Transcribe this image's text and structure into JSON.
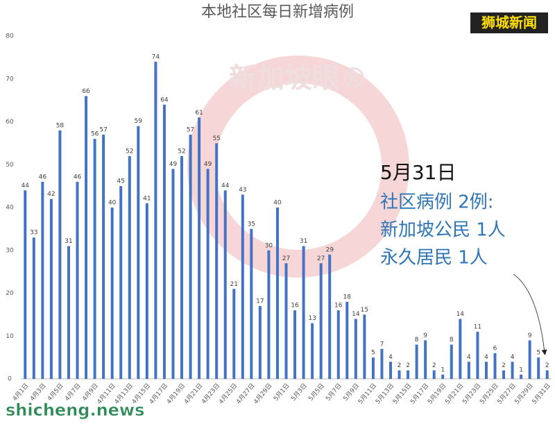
{
  "chart_data": {
    "type": "bar",
    "title": "本地社区每日新增病例",
    "categories": [
      "4月1日",
      null,
      "4月3日",
      null,
      "4月5日",
      null,
      "4月7日",
      null,
      "4月9日",
      null,
      "4月11日",
      null,
      "4月13日",
      null,
      "4月15日",
      null,
      "4月17日",
      null,
      "4月19日",
      null,
      "4月21日",
      null,
      "4月23日",
      null,
      "4月25日",
      null,
      "4月27日",
      null,
      "4月29日",
      null,
      "5月1日",
      null,
      "5月3日",
      null,
      "5月5日",
      null,
      "5月7日",
      null,
      "5月9日",
      null,
      "5月11日",
      null,
      "5月13日",
      null,
      "5月15日",
      null,
      "5月17日",
      null,
      "5月19日",
      null,
      "5月21日",
      null,
      "5月23日",
      null,
      "5月25日",
      null,
      "5月27日",
      null,
      "5月29日",
      null,
      "5月31日"
    ],
    "values": [
      44,
      33,
      46,
      42,
      58,
      31,
      46,
      66,
      56,
      57,
      40,
      45,
      52,
      59,
      41,
      74,
      64,
      49,
      52,
      57,
      61,
      49,
      55,
      44,
      21,
      43,
      35,
      17,
      30,
      40,
      27,
      16,
      31,
      13,
      27,
      29,
      16,
      18,
      14,
      15,
      5,
      7,
      4,
      2,
      2,
      8,
      9,
      2,
      1,
      8,
      14,
      4,
      11,
      4,
      6,
      2,
      4,
      1,
      9,
      5,
      2
    ],
    "color": "#4472c4",
    "ylim": [
      0,
      80
    ],
    "yticks": [
      0,
      10,
      20,
      30,
      40,
      50,
      60,
      70,
      80
    ],
    "grid": false,
    "annotation": {
      "heading": "5月31日",
      "lines": [
        "社区病例 2例:",
        "新加坡公民 1人",
        "永久居民 1人"
      ]
    },
    "watermarks": [
      "狮城新闻",
      "新加坡眼®",
      "shicheng.news"
    ]
  }
}
